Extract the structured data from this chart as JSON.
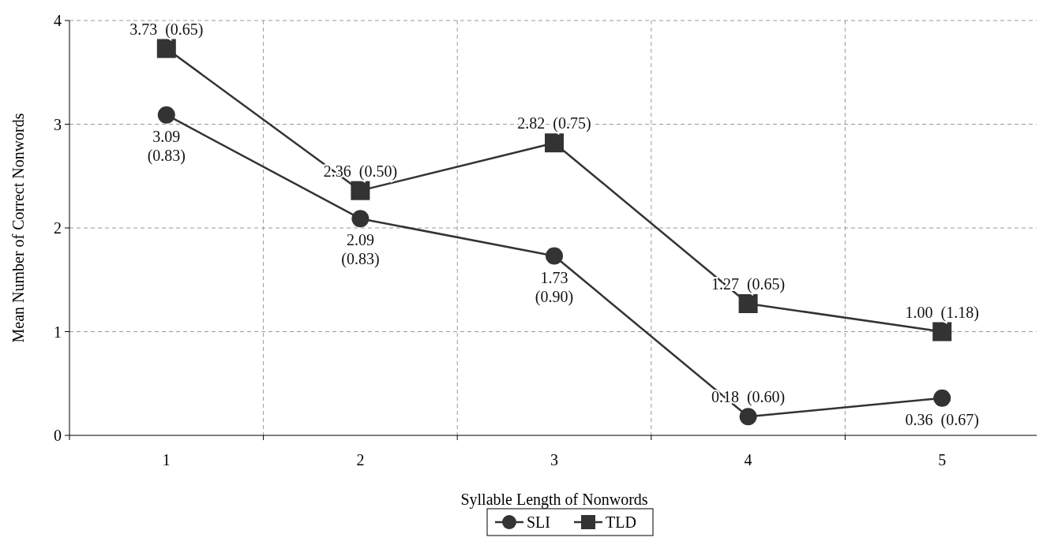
{
  "chart_data": {
    "type": "line",
    "xlabel": "Syllable Length of Nonwords",
    "ylabel": "Mean Number of Correct Nonwords",
    "categories": [
      "1",
      "2",
      "3",
      "4",
      "5"
    ],
    "series": [
      {
        "name": "SLI",
        "color": "#333333",
        "marker": "circle",
        "values": [
          3.09,
          2.09,
          1.73,
          0.18,
          0.36
        ],
        "value_labels": [
          "3.09\n(0.83)",
          "2.09\n(0.83)",
          "1.73\n(0.90)",
          "0.18  (0.60)",
          "0.36  (0.67)"
        ]
      },
      {
        "name": "TLD",
        "color": "#333333",
        "marker": "square",
        "values": [
          3.73,
          2.36,
          2.82,
          1.27,
          1.0
        ],
        "value_labels": [
          "3.73  (0.65)",
          "2.36  (0.50)",
          "2.82  (0.75)",
          "1.27  (0.65)",
          "1.00  (1.18)"
        ]
      }
    ],
    "ylim": [
      0,
      4
    ],
    "yticks": [
      0,
      1,
      2,
      3,
      4
    ],
    "grid": true,
    "legend": "bottom",
    "line_style": "solid"
  }
}
